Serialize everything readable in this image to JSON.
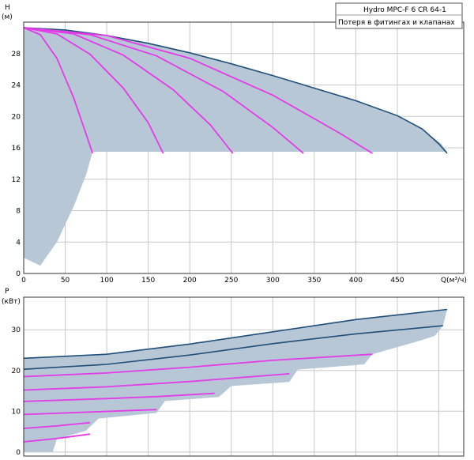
{
  "chart_data": [
    {
      "type": "area",
      "legend": [
        "Hydro  MPC-F 6  CR 64-1",
        "Потеря в фитингах и клапанах"
      ],
      "ylabel": "H",
      "yunit": "(м)",
      "xlabel": "Q(м³/ч)",
      "xlim": [
        0,
        530
      ],
      "ylim": [
        0,
        32
      ],
      "xticks": [
        0,
        50,
        100,
        150,
        200,
        250,
        300,
        350,
        400,
        450
      ],
      "yticks": [
        0,
        4,
        8,
        12,
        16,
        20,
        24,
        28
      ],
      "grid": true,
      "envelope": [
        [
          0,
          2
        ],
        [
          20,
          1
        ],
        [
          40,
          4
        ],
        [
          60,
          8.5
        ],
        [
          75,
          12.5
        ],
        [
          83,
          15.5
        ],
        [
          510,
          15.5
        ],
        [
          503,
          16.5
        ],
        [
          480,
          18.4
        ],
        [
          450,
          20.1
        ],
        [
          400,
          22
        ],
        [
          350,
          23.6
        ],
        [
          300,
          25.2
        ],
        [
          250,
          26.7
        ],
        [
          200,
          28.1
        ],
        [
          150,
          29.3
        ],
        [
          100,
          30.3
        ],
        [
          50,
          31
        ],
        [
          0,
          31.3
        ]
      ],
      "series": [
        {
          "color": "#1f4e79",
          "x": [
            0,
            50,
            100,
            150,
            200,
            250,
            300,
            350,
            400,
            450,
            480,
            500,
            510
          ],
          "y": [
            31.3,
            31,
            30.3,
            29.3,
            28.1,
            26.7,
            25.2,
            23.6,
            22,
            20.1,
            18.4,
            16.5,
            15.3
          ]
        },
        {
          "color": "#e33be8",
          "x": [
            0,
            20,
            40,
            60,
            75,
            83
          ],
          "y": [
            31.3,
            30.4,
            27.4,
            22.4,
            17.8,
            15.3
          ]
        },
        {
          "color": "#e33be8",
          "x": [
            0,
            40,
            80,
            120,
            150,
            168
          ],
          "y": [
            31.3,
            30.5,
            27.9,
            23.6,
            19.2,
            15.3
          ]
        },
        {
          "color": "#e33be8",
          "x": [
            0,
            60,
            120,
            180,
            225,
            252
          ],
          "y": [
            31.3,
            30.5,
            27.8,
            23.4,
            18.9,
            15.3
          ]
        },
        {
          "color": "#e33be8",
          "x": [
            0,
            80,
            160,
            240,
            300,
            337
          ],
          "y": [
            31.3,
            30.4,
            27.7,
            23.2,
            18.6,
            15.3
          ]
        },
        {
          "color": "#e33be8",
          "x": [
            0,
            100,
            200,
            300,
            380,
            420
          ],
          "y": [
            31.3,
            30.3,
            27.4,
            22.7,
            17.9,
            15.3
          ]
        }
      ]
    },
    {
      "type": "area",
      "ylabel": "P",
      "yunit": "(кВт)",
      "xlim": [
        0,
        530
      ],
      "ylim": [
        -1,
        38
      ],
      "yticks": [
        0,
        10,
        20,
        30
      ],
      "xgrid": [
        0,
        50,
        100,
        150,
        200,
        250,
        300,
        350,
        400,
        450,
        500
      ],
      "grid": true,
      "envelope": [
        [
          0,
          23
        ],
        [
          100,
          24
        ],
        [
          200,
          26.5
        ],
        [
          300,
          29.5
        ],
        [
          400,
          32.5
        ],
        [
          510,
          35
        ],
        [
          505,
          31
        ],
        [
          495,
          28.5
        ],
        [
          480,
          27.5
        ],
        [
          420,
          24
        ],
        [
          410,
          21.5
        ],
        [
          330,
          20.2
        ],
        [
          320,
          17.2
        ],
        [
          250,
          16.2
        ],
        [
          235,
          13.5
        ],
        [
          170,
          12.5
        ],
        [
          160,
          9.6
        ],
        [
          90,
          8.2
        ],
        [
          75,
          5.2
        ],
        [
          40,
          3.2
        ],
        [
          35,
          0
        ],
        [
          0,
          0
        ]
      ],
      "series": [
        {
          "color": "#1f4e79",
          "x": [
            0,
            100,
            200,
            300,
            400,
            510
          ],
          "y": [
            23,
            24,
            26.5,
            29.5,
            32.5,
            35
          ]
        },
        {
          "color": "#1f4e79",
          "x": [
            0,
            100,
            200,
            300,
            400,
            505
          ],
          "y": [
            20.3,
            21.5,
            23.8,
            26.6,
            29,
            31
          ]
        },
        {
          "color": "#e33be8",
          "x": [
            0,
            100,
            200,
            300,
            420
          ],
          "y": [
            18.5,
            19.4,
            20.8,
            22.5,
            24
          ]
        },
        {
          "color": "#e33be8",
          "x": [
            0,
            100,
            200,
            320
          ],
          "y": [
            15.2,
            16,
            17.3,
            19.2
          ]
        },
        {
          "color": "#e33be8",
          "x": [
            0,
            100,
            160,
            230
          ],
          "y": [
            12.4,
            13.1,
            13.6,
            14.4
          ]
        },
        {
          "color": "#e33be8",
          "x": [
            0,
            80,
            160
          ],
          "y": [
            9.2,
            9.8,
            10.4
          ]
        },
        {
          "color": "#e33be8",
          "x": [
            0,
            40,
            80
          ],
          "y": [
            5.8,
            6.4,
            7.2
          ]
        },
        {
          "color": "#e33be8",
          "x": [
            0,
            40,
            80
          ],
          "y": [
            2.5,
            3.3,
            4.4
          ]
        }
      ]
    }
  ]
}
